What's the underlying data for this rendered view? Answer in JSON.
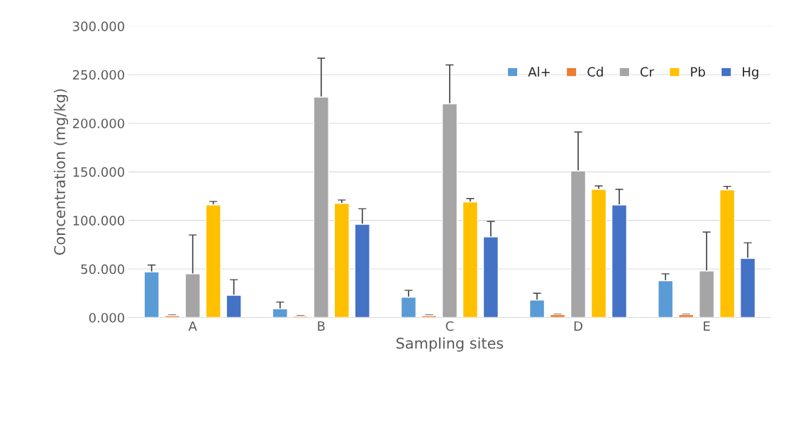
{
  "chart_data": {
    "type": "bar",
    "xlabel": "Sampling sites",
    "ylabel": "Concentration (mg/kg)",
    "categories": [
      "A",
      "B",
      "C",
      "D",
      "E"
    ],
    "series": [
      {
        "name": "Al+",
        "color": "#5b9bd5",
        "values": [
          47,
          9,
          21,
          18,
          38
        ],
        "errors": [
          7,
          7,
          7,
          7,
          7
        ]
      },
      {
        "name": "Cd",
        "color": "#ed7d31",
        "values": [
          2,
          1.5,
          2,
          3,
          3
        ],
        "errors": [
          0.5,
          0.5,
          0.5,
          0.5,
          0.5
        ]
      },
      {
        "name": "Cr",
        "color": "#a5a5a5",
        "values": [
          45,
          227,
          220,
          151,
          48
        ],
        "errors": [
          40,
          40,
          40,
          40,
          40
        ]
      },
      {
        "name": "Pb",
        "color": "#ffc000",
        "values": [
          116,
          117.5,
          119,
          132,
          131.5
        ],
        "errors": [
          3.5,
          3.5,
          3.5,
          3.5,
          3.5
        ]
      },
      {
        "name": "Hg",
        "color": "#4472c4",
        "values": [
          23,
          96,
          83,
          116,
          61
        ],
        "errors": [
          16,
          16,
          16,
          16,
          16
        ]
      }
    ],
    "ylim": [
      0,
      300
    ],
    "yticks": [
      {
        "value": 0,
        "label": "0.000"
      },
      {
        "value": 50,
        "label": "50.000"
      },
      {
        "value": 100,
        "label": "100.000"
      },
      {
        "value": 150,
        "label": "150.000"
      },
      {
        "value": 200,
        "label": "200.000"
      },
      {
        "value": 250,
        "label": "250.000"
      },
      {
        "value": 300,
        "label": "300.000"
      }
    ],
    "grid": "y",
    "legend": "top right"
  }
}
